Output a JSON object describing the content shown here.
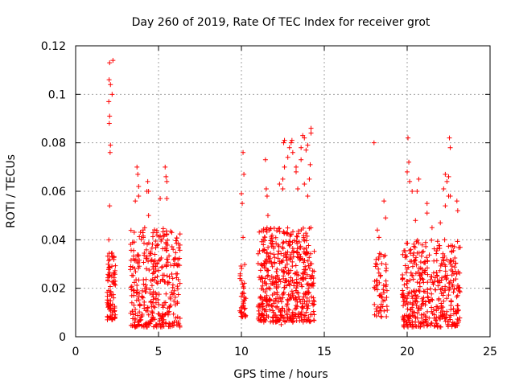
{
  "chart_data": {
    "type": "scatter",
    "title": "Day 260 of 2019, Rate Of TEC Index for receiver grot",
    "xlabel": "GPS time / hours",
    "ylabel": "ROTI / TECUs",
    "xlim": [
      0,
      25
    ],
    "ylim": [
      0,
      0.12
    ],
    "x_ticks": [
      0,
      5,
      10,
      15,
      20,
      25
    ],
    "x_tick_labels": [
      "0",
      "5",
      "10",
      "15",
      "20",
      "25"
    ],
    "y_ticks": [
      0,
      0.02,
      0.04,
      0.06,
      0.08,
      0.1,
      0.12
    ],
    "y_tick_labels": [
      "0",
      "0.02",
      "0.04",
      "0.06",
      "0.08",
      "0.1",
      "0.12"
    ],
    "grid": true,
    "marker": "plus",
    "color": "#ff0000",
    "series": [
      {
        "name": "ROTI",
        "clusters": [
          {
            "x_range": [
              1.9,
              2.4
            ],
            "y_range": [
              0.007,
              0.035
            ],
            "count": 90
          },
          {
            "x_range": [
              3.3,
              6.3
            ],
            "y_range": [
              0.004,
              0.045
            ],
            "count": 360
          },
          {
            "x_range": [
              9.9,
              10.3
            ],
            "y_range": [
              0.008,
              0.03
            ],
            "count": 40
          },
          {
            "x_range": [
              11.0,
              14.4
            ],
            "y_range": [
              0.006,
              0.045
            ],
            "count": 520
          },
          {
            "x_range": [
              18.0,
              18.8
            ],
            "y_range": [
              0.008,
              0.035
            ],
            "count": 60
          },
          {
            "x_range": [
              19.7,
              23.2
            ],
            "y_range": [
              0.004,
              0.04
            ],
            "count": 420
          }
        ],
        "points": [
          [
            2.05,
            0.113
          ],
          [
            2.25,
            0.114
          ],
          [
            2.2,
            0.1
          ],
          [
            2.02,
            0.106
          ],
          [
            2.1,
            0.104
          ],
          [
            2.0,
            0.097
          ],
          [
            2.05,
            0.091
          ],
          [
            2.03,
            0.088
          ],
          [
            2.1,
            0.079
          ],
          [
            2.08,
            0.076
          ],
          [
            2.05,
            0.054
          ],
          [
            2.0,
            0.04
          ],
          [
            3.6,
            0.056
          ],
          [
            3.7,
            0.07
          ],
          [
            3.75,
            0.067
          ],
          [
            3.8,
            0.062
          ],
          [
            3.8,
            0.058
          ],
          [
            4.3,
            0.06
          ],
          [
            4.35,
            0.064
          ],
          [
            4.4,
            0.06
          ],
          [
            4.4,
            0.05
          ],
          [
            5.4,
            0.07
          ],
          [
            5.45,
            0.066
          ],
          [
            5.5,
            0.064
          ],
          [
            5.1,
            0.057
          ],
          [
            5.5,
            0.057
          ],
          [
            5.8,
            0.043
          ],
          [
            10.1,
            0.076
          ],
          [
            10.15,
            0.067
          ],
          [
            10.0,
            0.059
          ],
          [
            10.05,
            0.055
          ],
          [
            10.1,
            0.041
          ],
          [
            11.45,
            0.073
          ],
          [
            11.5,
            0.061
          ],
          [
            11.55,
            0.058
          ],
          [
            11.6,
            0.05
          ],
          [
            12.3,
            0.063
          ],
          [
            12.5,
            0.065
          ],
          [
            12.5,
            0.061
          ],
          [
            12.6,
            0.07
          ],
          [
            12.8,
            0.074
          ],
          [
            12.9,
            0.078
          ],
          [
            13.0,
            0.08
          ],
          [
            13.05,
            0.081
          ],
          [
            13.1,
            0.076
          ],
          [
            12.55,
            0.08
          ],
          [
            12.6,
            0.081
          ],
          [
            13.3,
            0.068
          ],
          [
            13.3,
            0.07
          ],
          [
            13.4,
            0.061
          ],
          [
            13.6,
            0.073
          ],
          [
            13.6,
            0.078
          ],
          [
            13.7,
            0.083
          ],
          [
            13.8,
            0.082
          ],
          [
            13.9,
            0.077
          ],
          [
            14.0,
            0.079
          ],
          [
            14.2,
            0.084
          ],
          [
            14.2,
            0.086
          ],
          [
            14.15,
            0.071
          ],
          [
            14.1,
            0.065
          ],
          [
            13.8,
            0.063
          ],
          [
            14.0,
            0.058
          ],
          [
            18.0,
            0.08
          ],
          [
            18.2,
            0.044
          ],
          [
            18.3,
            0.041
          ],
          [
            18.6,
            0.056
          ],
          [
            18.7,
            0.049
          ],
          [
            20.05,
            0.082
          ],
          [
            20.1,
            0.072
          ],
          [
            20.0,
            0.068
          ],
          [
            20.15,
            0.064
          ],
          [
            20.3,
            0.06
          ],
          [
            20.6,
            0.06
          ],
          [
            20.7,
            0.065
          ],
          [
            20.5,
            0.048
          ],
          [
            21.2,
            0.051
          ],
          [
            21.2,
            0.055
          ],
          [
            21.5,
            0.045
          ],
          [
            22.2,
            0.061
          ],
          [
            22.3,
            0.067
          ],
          [
            22.4,
            0.064
          ],
          [
            22.5,
            0.066
          ],
          [
            22.55,
            0.082
          ],
          [
            22.6,
            0.078
          ],
          [
            22.5,
            0.058
          ],
          [
            23.0,
            0.056
          ],
          [
            23.05,
            0.052
          ],
          [
            22.0,
            0.047
          ],
          [
            22.3,
            0.054
          ],
          [
            22.6,
            0.058
          ],
          [
            20.0,
            0.008
          ],
          [
            20.3,
            0.004
          ],
          [
            4.9,
            0.005
          ],
          [
            5.2,
            0.004
          ],
          [
            3.6,
            0.007
          ],
          [
            12.4,
            0.005
          ],
          [
            13.1,
            0.006
          ]
        ]
      }
    ]
  }
}
